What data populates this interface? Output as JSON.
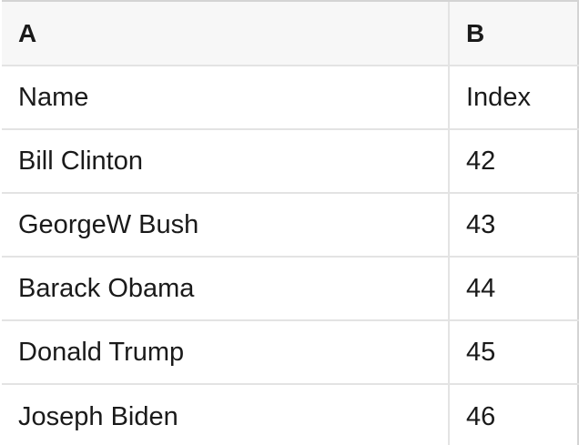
{
  "sheet": {
    "columns": [
      {
        "letter": "A"
      },
      {
        "letter": "B"
      }
    ],
    "rows": [
      {
        "a": "Name",
        "b": "Index"
      },
      {
        "a": "Bill Clinton",
        "b": "42"
      },
      {
        "a": "GeorgeW Bush",
        "b": "43"
      },
      {
        "a": "Barack Obama",
        "b": "44"
      },
      {
        "a": "Donald Trump",
        "b": "45"
      },
      {
        "a": "Joseph Biden",
        "b": "46"
      }
    ]
  },
  "colors": {
    "header_bg": "#f7f7f7",
    "grid_line": "#e3e3e3",
    "outer_line": "#d4d4d4",
    "text": "#1a1a1a",
    "cell_bg": "#ffffff"
  }
}
